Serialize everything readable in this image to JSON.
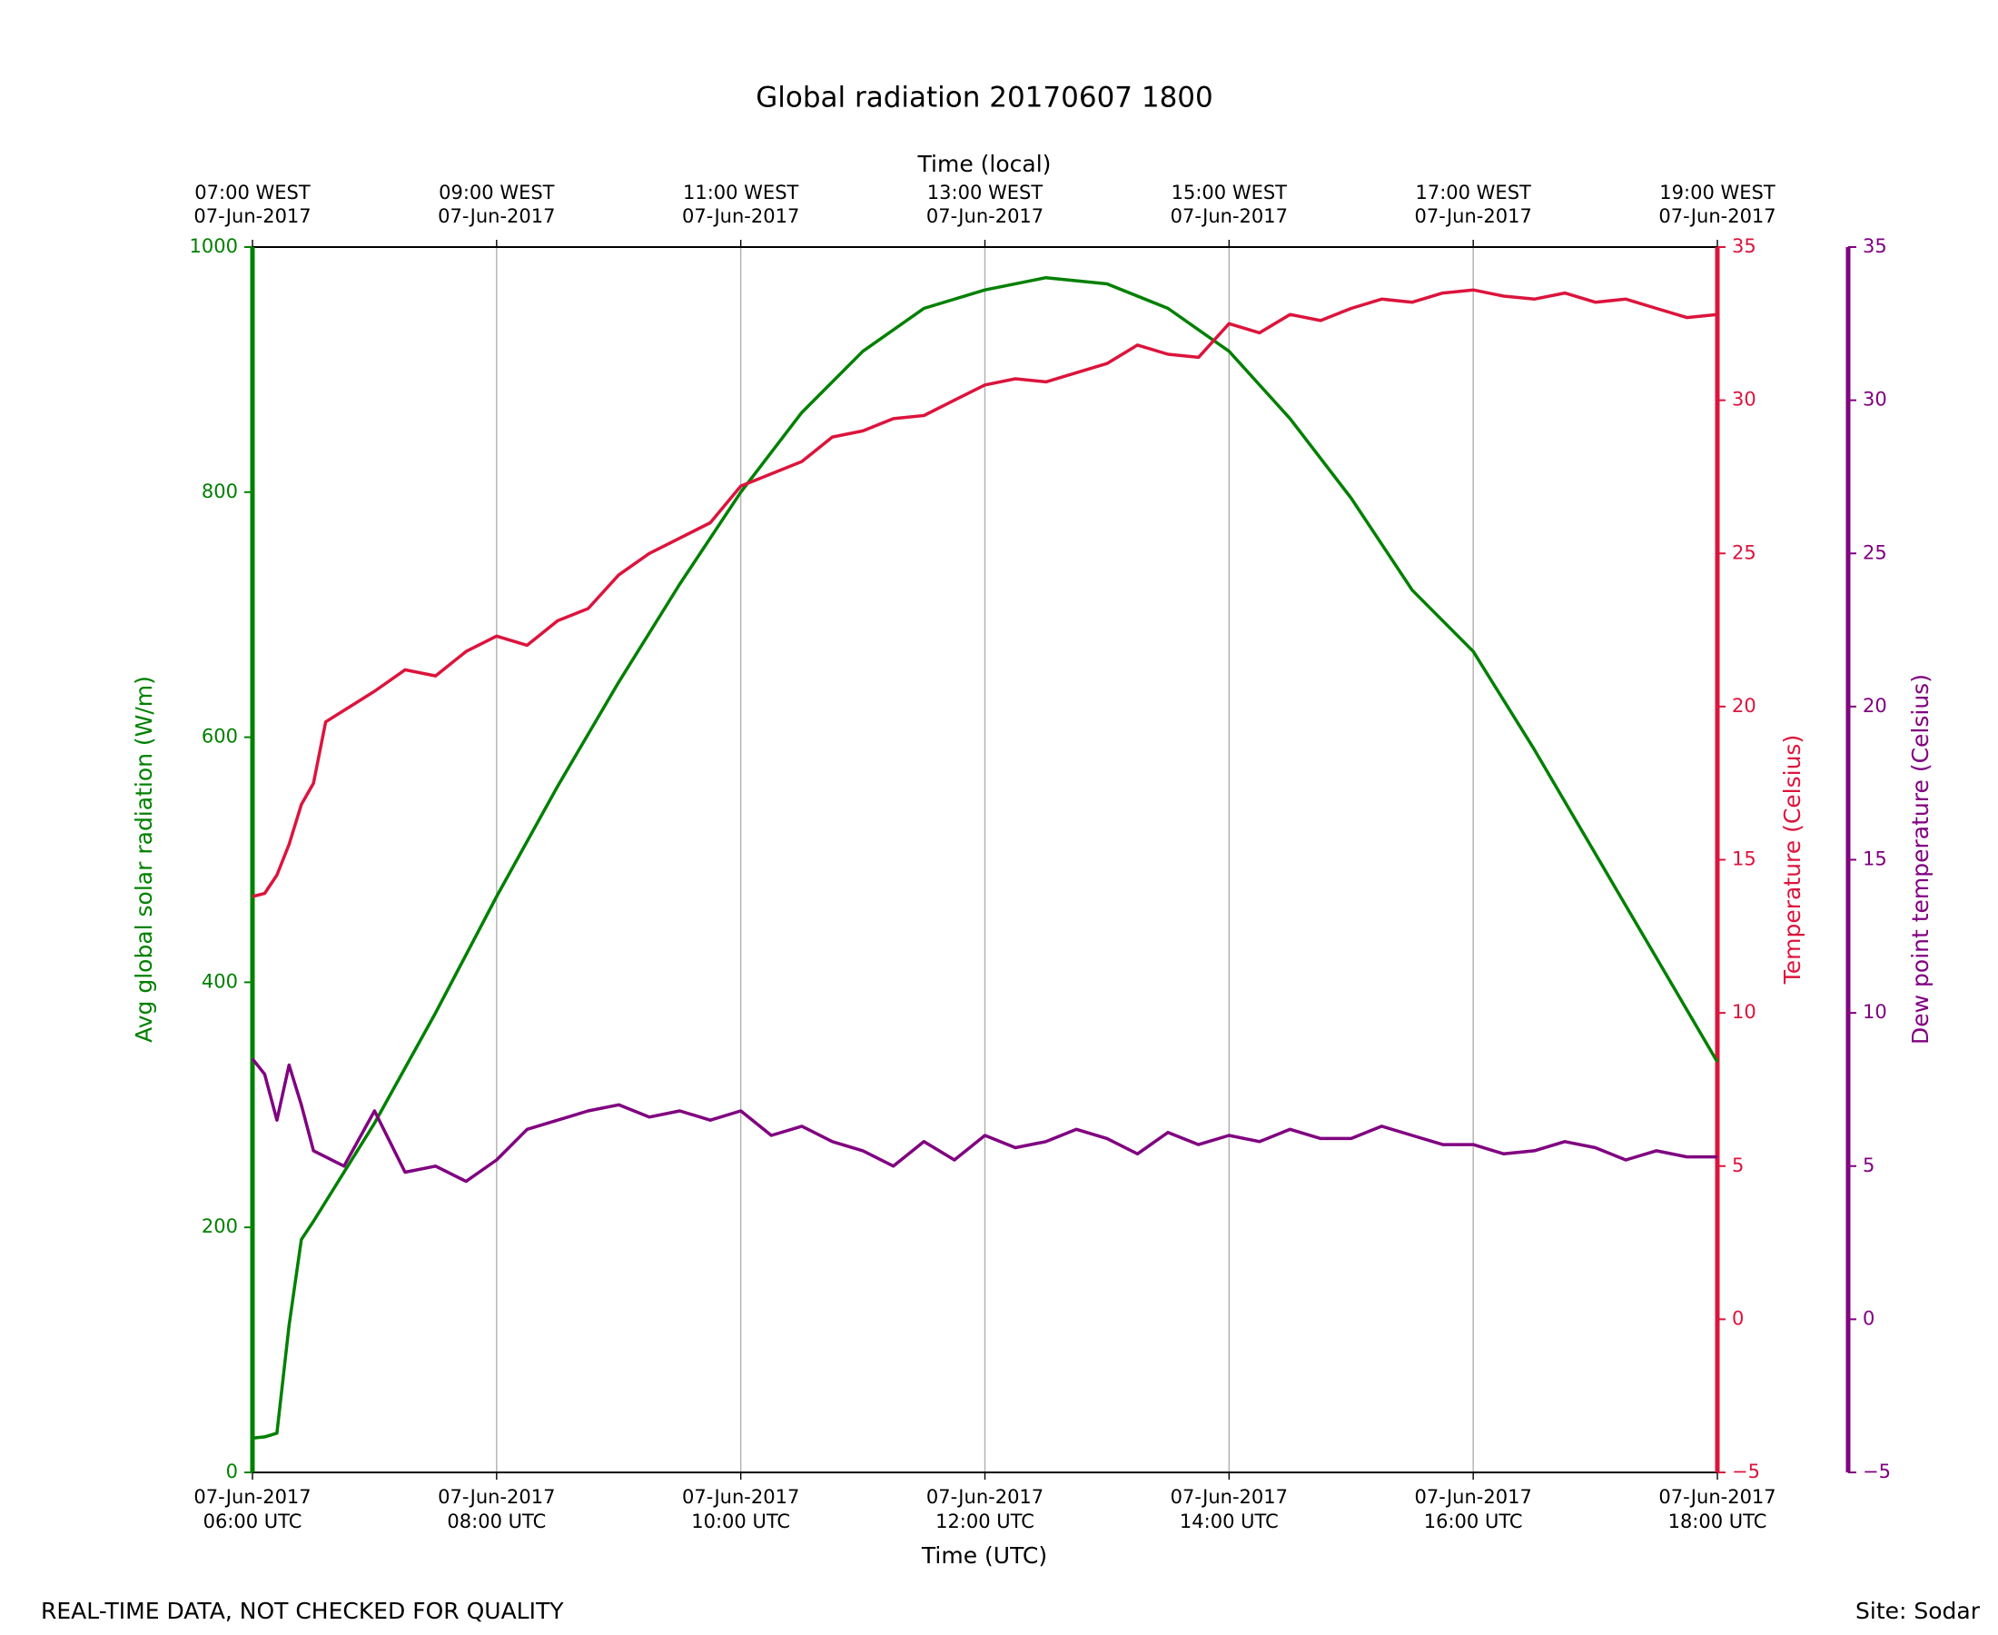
{
  "chart_data": {
    "type": "line",
    "title": "Global radiation 20170607 1800",
    "x_label": "Time (UTC)",
    "top_x_label": "Time (local)",
    "y_label": "Avg global solar radiation (W/m)",
    "y2_label": "Temperature (Celsius)",
    "y3_label": "Dew point temperature (Celsius)",
    "footer_left": "REAL-TIME DATA, NOT CHECKED FOR QUALITY",
    "footer_right": "Site: Sodar",
    "xlim": [
      6,
      18
    ],
    "xticks": [
      {
        "value": 6,
        "label": [
          "07-Jun-2017",
          "06:00 UTC"
        ]
      },
      {
        "value": 8,
        "label": [
          "07-Jun-2017",
          "08:00 UTC"
        ]
      },
      {
        "value": 10,
        "label": [
          "07-Jun-2017",
          "10:00 UTC"
        ]
      },
      {
        "value": 12,
        "label": [
          "07-Jun-2017",
          "12:00 UTC"
        ]
      },
      {
        "value": 14,
        "label": [
          "07-Jun-2017",
          "14:00 UTC"
        ]
      },
      {
        "value": 16,
        "label": [
          "07-Jun-2017",
          "16:00 UTC"
        ]
      },
      {
        "value": 18,
        "label": [
          "07-Jun-2017",
          "18:00 UTC"
        ]
      }
    ],
    "top_xticks": [
      {
        "value": 6,
        "label": [
          "07:00 WEST",
          "07-Jun-2017"
        ]
      },
      {
        "value": 8,
        "label": [
          "09:00 WEST",
          "07-Jun-2017"
        ]
      },
      {
        "value": 10,
        "label": [
          "11:00 WEST",
          "07-Jun-2017"
        ]
      },
      {
        "value": 12,
        "label": [
          "13:00 WEST",
          "07-Jun-2017"
        ]
      },
      {
        "value": 14,
        "label": [
          "15:00 WEST",
          "07-Jun-2017"
        ]
      },
      {
        "value": 16,
        "label": [
          "17:00 WEST",
          "07-Jun-2017"
        ]
      },
      {
        "value": 18,
        "label": [
          "19:00 WEST",
          "07-Jun-2017"
        ]
      }
    ],
    "ylim": [
      0,
      1000
    ],
    "yticks": [
      0,
      200,
      400,
      600,
      800,
      1000
    ],
    "y2lim": [
      -5,
      35
    ],
    "y2ticks": [
      {
        "value": -5,
        "label": "−5"
      },
      0,
      5,
      10,
      15,
      20,
      25,
      30,
      35
    ],
    "y3lim": [
      -5,
      35
    ],
    "y3ticks": [
      {
        "value": -5,
        "label": "−5"
      },
      0,
      5,
      10,
      15,
      20,
      25,
      30,
      35
    ],
    "grid": true,
    "series": [
      {
        "color": "#008000",
        "axis": "y",
        "x": [
          6.0,
          6.1,
          6.2,
          6.3,
          6.4,
          6.5,
          7.0,
          7.5,
          8.0,
          8.5,
          9.0,
          9.5,
          10.0,
          10.5,
          11.0,
          11.5,
          12.0,
          12.5,
          13.0,
          13.5,
          14.0,
          14.5,
          15.0,
          15.5,
          16.0,
          16.5,
          17.0,
          17.5,
          18.0
        ],
        "values": [
          28,
          29,
          32,
          120,
          190,
          205,
          285,
          375,
          470,
          560,
          645,
          725,
          800,
          865,
          915,
          950,
          965,
          975,
          970,
          950,
          915,
          860,
          795,
          720,
          670,
          590,
          505,
          420,
          335
        ]
      },
      {
        "color": "#dc143c",
        "axis": "y2",
        "x": [
          6.0,
          6.1,
          6.2,
          6.3,
          6.4,
          6.5,
          6.6,
          7.0,
          7.25,
          7.5,
          7.75,
          8.0,
          8.25,
          8.5,
          8.75,
          9.0,
          9.25,
          9.5,
          9.75,
          10.0,
          10.25,
          10.5,
          10.75,
          11.0,
          11.25,
          11.5,
          11.75,
          12.0,
          12.25,
          12.5,
          12.75,
          13.0,
          13.25,
          13.5,
          13.75,
          14.0,
          14.25,
          14.5,
          14.75,
          15.0,
          15.25,
          15.5,
          15.75,
          16.0,
          16.25,
          16.5,
          16.75,
          17.0,
          17.25,
          17.5,
          17.75,
          18.0
        ],
        "values": [
          13.8,
          13.9,
          14.5,
          15.5,
          16.8,
          17.5,
          19.5,
          20.5,
          21.2,
          21.0,
          21.8,
          22.3,
          22.0,
          22.8,
          23.2,
          24.3,
          25.0,
          25.5,
          26.0,
          27.2,
          27.6,
          28.0,
          28.8,
          29.0,
          29.4,
          29.5,
          30.0,
          30.5,
          30.7,
          30.6,
          30.9,
          31.2,
          31.8,
          31.5,
          31.4,
          32.5,
          32.2,
          32.8,
          32.6,
          33.0,
          33.3,
          33.2,
          33.5,
          33.6,
          33.4,
          33.3,
          33.5,
          33.2,
          33.3,
          33.0,
          32.7,
          32.8
        ]
      },
      {
        "color": "#800080",
        "axis": "y3",
        "x": [
          6.0,
          6.1,
          6.2,
          6.3,
          6.4,
          6.5,
          6.75,
          7.0,
          7.25,
          7.5,
          7.75,
          8.0,
          8.25,
          8.5,
          8.75,
          9.0,
          9.25,
          9.5,
          9.75,
          10.0,
          10.25,
          10.5,
          10.75,
          11.0,
          11.25,
          11.5,
          11.75,
          12.0,
          12.25,
          12.5,
          12.75,
          13.0,
          13.25,
          13.5,
          13.75,
          14.0,
          14.25,
          14.5,
          14.75,
          15.0,
          15.25,
          15.5,
          15.75,
          16.0,
          16.25,
          16.5,
          16.75,
          17.0,
          17.25,
          17.5,
          17.75,
          18.0
        ],
        "values": [
          8.5,
          8.0,
          6.5,
          8.3,
          7.0,
          5.5,
          5.0,
          6.8,
          4.8,
          5.0,
          4.5,
          5.2,
          6.2,
          6.5,
          6.8,
          7.0,
          6.6,
          6.8,
          6.5,
          6.8,
          6.0,
          6.3,
          5.8,
          5.5,
          5.0,
          5.8,
          5.2,
          6.0,
          5.6,
          5.8,
          6.2,
          5.9,
          5.4,
          6.1,
          5.7,
          6.0,
          5.8,
          6.2,
          5.9,
          5.9,
          6.3,
          6.0,
          5.7,
          5.7,
          5.4,
          5.5,
          5.8,
          5.6,
          5.2,
          5.5,
          5.3,
          5.3
        ]
      }
    ]
  }
}
